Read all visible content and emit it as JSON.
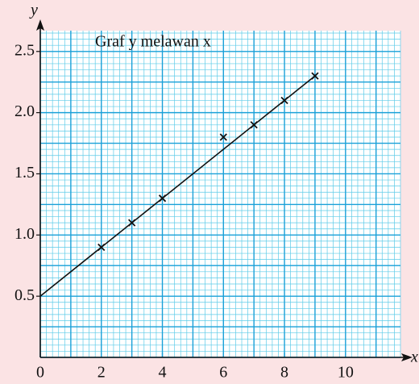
{
  "chart_data": {
    "type": "scatter",
    "title": "Graf y melawan x",
    "x_label": "x",
    "y_label": "y",
    "x": [
      2,
      3,
      4,
      6,
      7,
      8,
      9
    ],
    "values": [
      0.9,
      1.1,
      1.3,
      1.8,
      1.9,
      2.1,
      2.3
    ],
    "fit_line": {
      "x": [
        0,
        9
      ],
      "values": [
        0.5,
        2.3
      ]
    },
    "color": "#111111",
    "xlim": [
      0,
      11.8
    ],
    "ylim": [
      0,
      2.67
    ],
    "xticks": [
      0,
      2,
      4,
      6,
      8,
      10
    ],
    "yticks": [
      0.5,
      {
        "value": 1.0,
        "label": "1.0"
      },
      1.5,
      {
        "value": 2.0,
        "label": "2.0"
      },
      2.5
    ],
    "grid": true
  }
}
